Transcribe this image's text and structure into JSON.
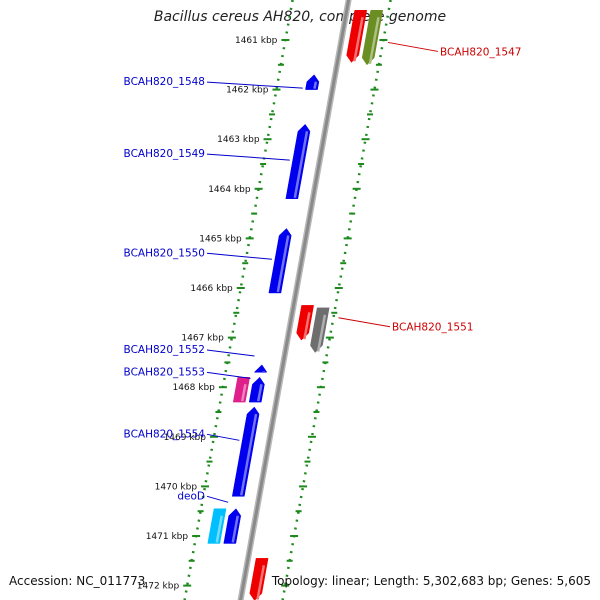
{
  "header": {
    "title": "Bacillus cereus AH820, complete genome"
  },
  "footer": {
    "accession": "Accession: NC_011773",
    "topology": "Topology: linear; Length: 5,302,683 bp; Genes: 5,605"
  },
  "colors": {
    "backbone": "#8a8a8a",
    "ruler": "#1e8a1e",
    "label_left": "#0000cc",
    "label_right": "#cc0000",
    "gene_blue": "#0000ee",
    "gene_red": "#ee0000",
    "gene_olive": "#6b8e23",
    "gene_gray": "#6e6e6e",
    "gene_magenta": "#e0208a",
    "gene_cyan": "#00bfff"
  },
  "ruler": {
    "unit": "kbp",
    "ticks": [
      "1461 kbp",
      "1462 kbp",
      "1463 kbp",
      "1464 kbp",
      "1465 kbp",
      "1466 kbp",
      "1467 kbp",
      "1468 kbp",
      "1469 kbp",
      "1470 kbp",
      "1471 kbp",
      "1472 kbp"
    ]
  },
  "genes": [
    {
      "label": "BCAH820_1547",
      "start": 1460.4,
      "end": 1461.45,
      "track": "outer",
      "strand": "-",
      "color": "#ee0000"
    },
    {
      "label": "BCAH820_1547",
      "start": 1460.4,
      "end": 1461.5,
      "track": "outer2",
      "strand": "-",
      "color": "#6b8e23"
    },
    {
      "label": "BCAH820_1548",
      "start": 1461.7,
      "end": 1462.0,
      "track": "inner",
      "strand": "+",
      "color": "#0000ee"
    },
    {
      "label": "BCAH820_1549",
      "start": 1462.7,
      "end": 1464.2,
      "track": "inner",
      "strand": "+",
      "color": "#0000ee"
    },
    {
      "label": "BCAH820_1550",
      "start": 1464.8,
      "end": 1466.1,
      "track": "inner",
      "strand": "+",
      "color": "#0000ee"
    },
    {
      "label": "BCAH820_1551",
      "start": 1466.35,
      "end": 1467.05,
      "track": "outer",
      "strand": "-",
      "color": "#ee0000"
    },
    {
      "label": "BCAH820_1551",
      "start": 1466.4,
      "end": 1467.3,
      "track": "outer2",
      "strand": "-",
      "color": "#6e6e6e"
    },
    {
      "label": "BCAH820_1552",
      "start": 1467.55,
      "end": 1467.7,
      "track": "inner",
      "strand": "+",
      "color": "#0000ee"
    },
    {
      "label": "BCAH820_1553",
      "start": 1467.8,
      "end": 1468.3,
      "track": "inner2",
      "strand": "none",
      "color": "#e0208a"
    },
    {
      "label": "BCAH820_1553",
      "start": 1467.8,
      "end": 1468.3,
      "track": "inner",
      "strand": "+",
      "color": "#0000ee"
    },
    {
      "label": "BCAH820_1554",
      "start": 1468.4,
      "end": 1470.2,
      "track": "inner",
      "strand": "+",
      "color": "#0000ee"
    },
    {
      "label": "deoD",
      "start": 1470.45,
      "end": 1471.15,
      "track": "inner2",
      "strand": "none",
      "color": "#00bfff"
    },
    {
      "label": "deoD",
      "start": 1470.45,
      "end": 1471.15,
      "track": "inner",
      "strand": "+",
      "color": "#0000ee"
    },
    {
      "label": "",
      "start": 1471.45,
      "end": 1472.3,
      "track": "outer",
      "strand": "-",
      "color": "#ee0000"
    }
  ],
  "labels": [
    {
      "text": "BCAH820_1547",
      "side": "right",
      "pos": 1461.15
    },
    {
      "text": "BCAH820_1548",
      "side": "left",
      "pos": 1461.85
    },
    {
      "text": "BCAH820_1549",
      "side": "left",
      "pos": 1463.3
    },
    {
      "text": "BCAH820_1550",
      "side": "left",
      "pos": 1465.3
    },
    {
      "text": "BCAH820_1551",
      "side": "right",
      "pos": 1466.7
    },
    {
      "text": "BCAH820_1552",
      "side": "left",
      "pos": 1467.25
    },
    {
      "text": "BCAH820_1553",
      "side": "left",
      "pos": 1467.7
    },
    {
      "text": "BCAH820_1554",
      "side": "left",
      "pos": 1468.95
    },
    {
      "text": "deoD",
      "side": "left",
      "pos": 1470.2
    }
  ]
}
